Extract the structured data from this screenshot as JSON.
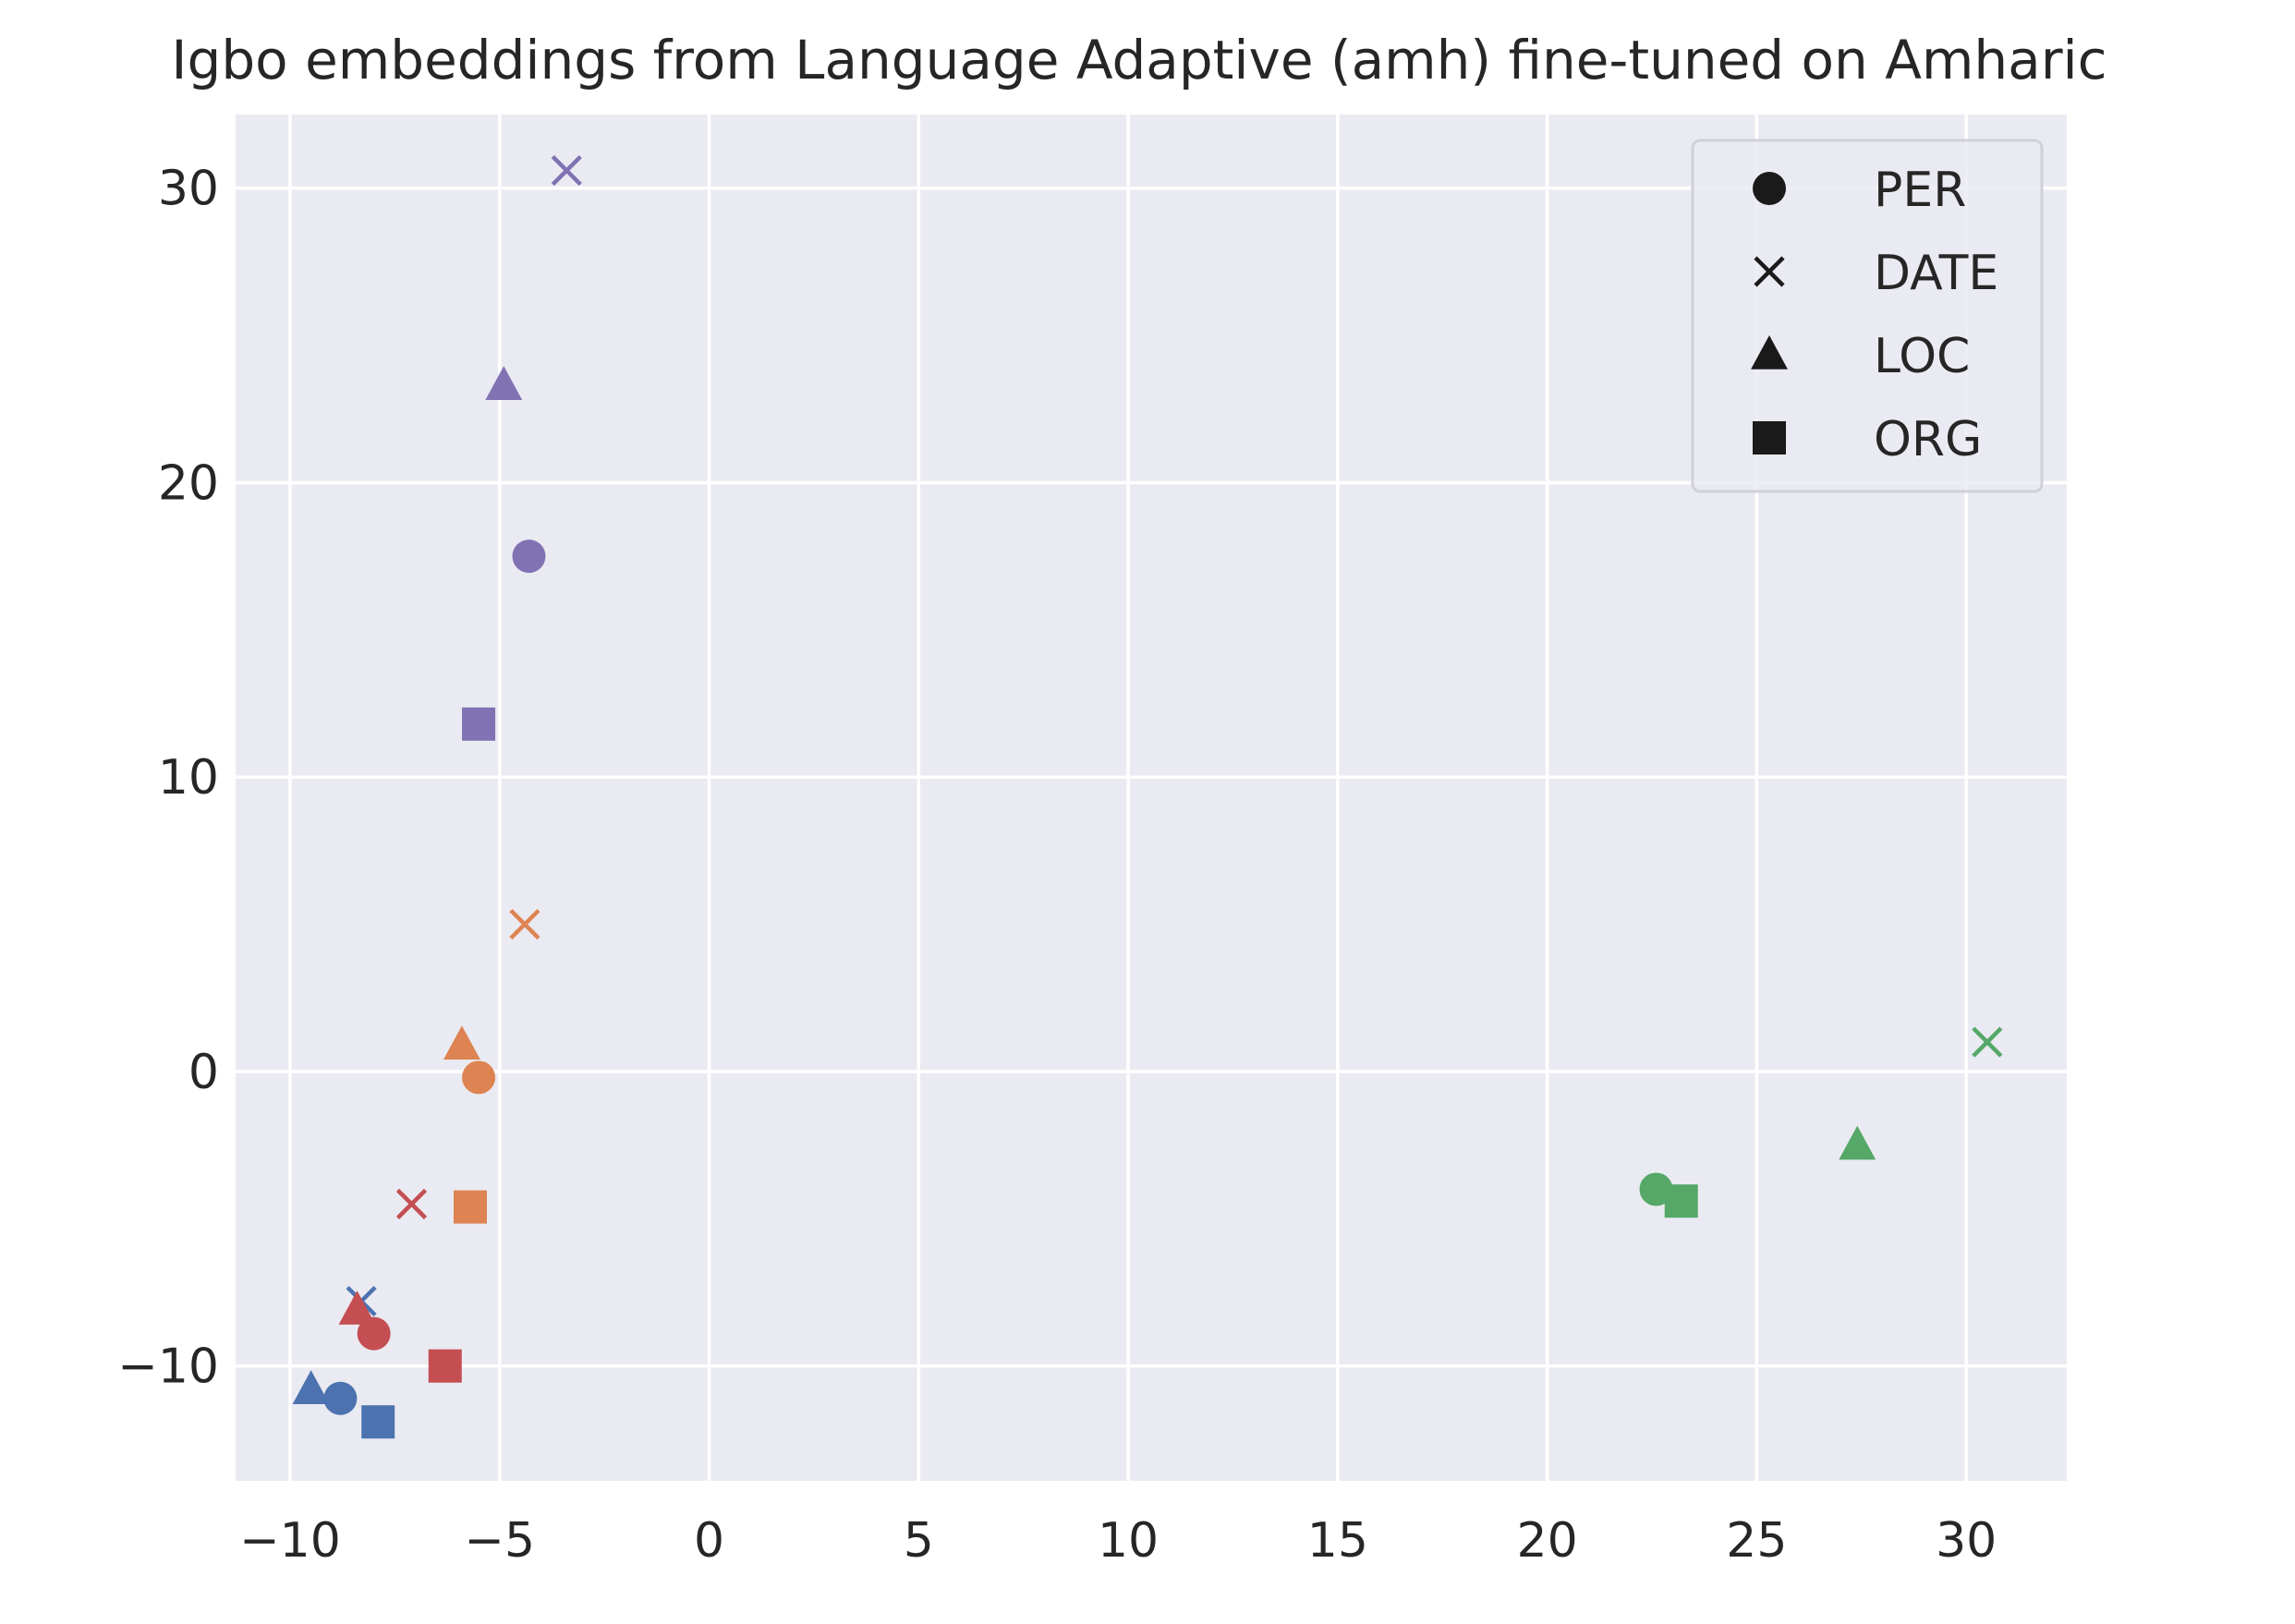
{
  "chart_data": {
    "type": "scatter",
    "title": "Igbo embeddings from Language Adaptive (amh) fine-tuned on Amharic",
    "xlabel": "",
    "ylabel": "",
    "xlim": [
      -11.3,
      32.4
    ],
    "ylim": [
      -13.9,
      32.5
    ],
    "x_ticks": [
      -10,
      -5,
      0,
      5,
      10,
      15,
      20,
      25,
      30
    ],
    "y_ticks": [
      -10,
      0,
      10,
      20,
      30
    ],
    "x_tick_labels": [
      "−10",
      "−5",
      "0",
      "5",
      "10",
      "15",
      "20",
      "25",
      "30"
    ],
    "y_tick_labels": [
      "−10",
      "0",
      "10",
      "20",
      "30"
    ],
    "grid": true,
    "background": "#eaeaf2",
    "grid_color": "#ffffff",
    "legend": {
      "position": "top-right",
      "entries": [
        {
          "label": "PER",
          "marker": "circle"
        },
        {
          "label": "DATE",
          "marker": "x"
        },
        {
          "label": "LOC",
          "marker": "triangle"
        },
        {
          "label": "ORG",
          "marker": "square"
        }
      ]
    },
    "colors": [
      "#4c72b0",
      "#dd8452",
      "#55a868",
      "#c44e52",
      "#8172b3"
    ],
    "points": [
      {
        "color": "#4c72b0",
        "marker": "circle",
        "x": -8.8,
        "y": -11.1
      },
      {
        "color": "#4c72b0",
        "marker": "x",
        "x": -8.3,
        "y": -7.8
      },
      {
        "color": "#4c72b0",
        "marker": "triangle",
        "x": -9.5,
        "y": -10.8
      },
      {
        "color": "#4c72b0",
        "marker": "square",
        "x": -7.9,
        "y": -11.9
      },
      {
        "color": "#dd8452",
        "marker": "circle",
        "x": -5.5,
        "y": -0.2
      },
      {
        "color": "#dd8452",
        "marker": "x",
        "x": -4.4,
        "y": 5.0
      },
      {
        "color": "#dd8452",
        "marker": "triangle",
        "x": -5.9,
        "y": 0.9
      },
      {
        "color": "#dd8452",
        "marker": "square",
        "x": -5.7,
        "y": -4.6
      },
      {
        "color": "#55a868",
        "marker": "circle",
        "x": 22.6,
        "y": -4.0
      },
      {
        "color": "#55a868",
        "marker": "x",
        "x": 30.5,
        "y": 1.0
      },
      {
        "color": "#55a868",
        "marker": "triangle",
        "x": 27.4,
        "y": -2.5
      },
      {
        "color": "#55a868",
        "marker": "square",
        "x": 23.2,
        "y": -4.4
      },
      {
        "color": "#c44e52",
        "marker": "circle",
        "x": -8.0,
        "y": -8.9
      },
      {
        "color": "#c44e52",
        "marker": "x",
        "x": -7.1,
        "y": -4.5
      },
      {
        "color": "#c44e52",
        "marker": "triangle",
        "x": -8.4,
        "y": -8.1
      },
      {
        "color": "#c44e52",
        "marker": "square",
        "x": -6.3,
        "y": -10.0
      },
      {
        "color": "#8172b3",
        "marker": "circle",
        "x": -4.3,
        "y": 17.5
      },
      {
        "color": "#8172b3",
        "marker": "x",
        "x": -3.4,
        "y": 30.6
      },
      {
        "color": "#8172b3",
        "marker": "triangle",
        "x": -4.9,
        "y": 23.3
      },
      {
        "color": "#8172b3",
        "marker": "square",
        "x": -5.5,
        "y": 11.8
      }
    ]
  }
}
